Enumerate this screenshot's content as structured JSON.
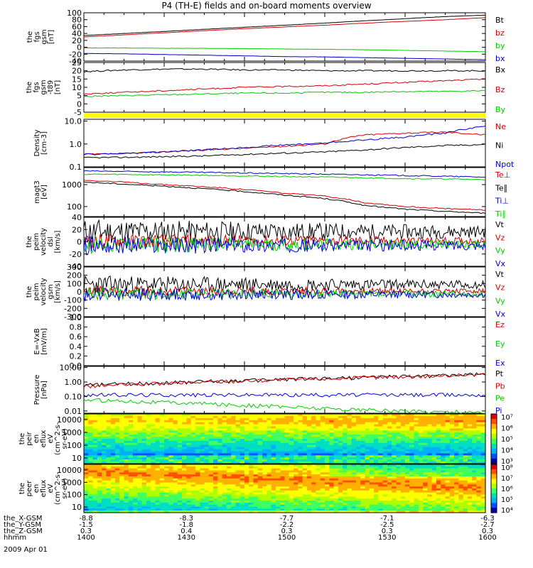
{
  "title": "P4 (TH-E) fields and on-board moments overview",
  "date": "2009 Apr 01",
  "colors": {
    "black": "#000000",
    "red": "#d40000",
    "green": "#00cc00",
    "blue": "#0000cc",
    "yellow": "#ffff00"
  },
  "chart_data": [
    {
      "id": "fgs",
      "type": "line",
      "ylabel": [
        "the",
        "fgs",
        "gsm",
        "[nT]"
      ],
      "ytick_labels": [
        "100",
        "80",
        "60",
        "40",
        "20",
        "0",
        "-20",
        "-40"
      ],
      "ylim": [
        -40,
        100
      ],
      "legend": [
        {
          "name": "Bt",
          "color": "black"
        },
        {
          "name": "bz",
          "color": "red"
        },
        {
          "name": "by",
          "color": "green"
        },
        {
          "name": "bx",
          "color": "blue"
        }
      ],
      "series": [
        {
          "name": "Bt",
          "color": "black",
          "values": [
            34,
            40,
            46,
            52,
            58,
            64,
            70,
            77,
            83,
            89,
            93
          ]
        },
        {
          "name": "bz",
          "color": "red",
          "values": [
            30,
            36,
            42,
            48,
            54,
            59,
            64,
            70,
            75,
            80,
            86
          ]
        },
        {
          "name": "by",
          "color": "green",
          "values": [
            -2,
            -2,
            -3,
            -3,
            -4,
            -5,
            -6,
            -7,
            -9,
            -11,
            -13
          ]
        },
        {
          "name": "bx",
          "color": "blue",
          "values": [
            -18,
            -19,
            -21,
            -23,
            -25,
            -27,
            -28,
            -30,
            -32,
            -34,
            -36
          ]
        }
      ]
    },
    {
      "id": "t89",
      "type": "line",
      "ylabel": [
        "the",
        "fgs",
        "gsm",
        "-t89",
        "[nT]"
      ],
      "ytick_labels": [
        "25",
        "20",
        "15",
        "10",
        "5",
        "0",
        "-5"
      ],
      "ylim": [
        -5,
        25
      ],
      "legend": [
        {
          "name": "Bx",
          "color": "black"
        },
        {
          "name": "Bz",
          "color": "red"
        },
        {
          "name": "By",
          "color": "green"
        }
      ],
      "series": [
        {
          "name": "Bx",
          "color": "black",
          "values": [
            19.5,
            20.5,
            21,
            21,
            20.5,
            20.5,
            20,
            20,
            20,
            20,
            20
          ]
        },
        {
          "name": "Bz",
          "color": "red",
          "values": [
            6,
            7,
            8,
            9,
            10,
            10.5,
            11,
            12,
            13,
            14,
            15
          ]
        },
        {
          "name": "By",
          "color": "green",
          "values": [
            4.5,
            5,
            5.5,
            6,
            6.5,
            6.5,
            7,
            7,
            7.5,
            7.5,
            8
          ]
        }
      ]
    },
    {
      "id": "density",
      "type": "line",
      "log": true,
      "ylabel": [
        "Density",
        "[cm-3]"
      ],
      "ytick_labels": [
        "10.0",
        "1.0",
        "0.1"
      ],
      "ylim": [
        0.1,
        12
      ],
      "legend": [
        {
          "name": "Ne",
          "color": "red"
        },
        {
          "name": "Ni",
          "color": "black"
        },
        {
          "name": "Npot",
          "color": "blue"
        }
      ],
      "series": [
        {
          "name": "Ne",
          "color": "red",
          "values": [
            0.35,
            0.38,
            0.45,
            0.55,
            0.65,
            0.8,
            1.0,
            2.5,
            3.0,
            3.3,
            2.5
          ]
        },
        {
          "name": "Ni",
          "color": "black",
          "values": [
            0.25,
            0.26,
            0.28,
            0.3,
            0.35,
            0.4,
            0.45,
            0.55,
            0.7,
            0.85,
            0.95
          ]
        },
        {
          "name": "Npot",
          "color": "blue",
          "values": [
            0.35,
            0.38,
            0.45,
            0.55,
            0.7,
            0.9,
            1.1,
            1.5,
            2.0,
            3.0,
            6.0
          ]
        }
      ]
    },
    {
      "id": "temp",
      "type": "line",
      "log": true,
      "ylabel": [
        "magt3",
        "[eV]"
      ],
      "ytick_labels": [
        "1000",
        "100"
      ],
      "ylim": [
        35,
        6000
      ],
      "legend": [
        {
          "name": "Te⊥",
          "color": "red"
        },
        {
          "name": "Te∥",
          "color": "black"
        },
        {
          "name": "Ti⊥",
          "color": "blue"
        },
        {
          "name": "Ti∥",
          "color": "green"
        }
      ],
      "series": [
        {
          "name": "Ti⊥",
          "color": "blue",
          "values": [
            4200,
            4000,
            3800,
            3600,
            3400,
            3200,
            3000,
            2800,
            2600,
            2400,
            2200
          ]
        },
        {
          "name": "Ti∥",
          "color": "green",
          "values": [
            3000,
            2900,
            2800,
            2650,
            2500,
            2350,
            2200,
            2050,
            1900,
            1800,
            1700
          ]
        },
        {
          "name": "Te⊥",
          "color": "red",
          "values": [
            1600,
            1300,
            1000,
            800,
            600,
            400,
            300,
            150,
            100,
            80,
            70
          ]
        },
        {
          "name": "Te∥",
          "color": "black",
          "values": [
            1300,
            1050,
            850,
            650,
            480,
            330,
            230,
            110,
            75,
            60,
            50
          ]
        }
      ]
    },
    {
      "id": "vdsl",
      "type": "line",
      "ylabel": [
        "the",
        "peim",
        "velocity",
        "dsl",
        "[km/s]"
      ],
      "ytick_labels": [
        "40",
        "20",
        "0",
        "-20",
        "-40"
      ],
      "ylim": [
        -40,
        40
      ],
      "legend": [
        {
          "name": "Vt",
          "color": "black"
        },
        {
          "name": "Vz",
          "color": "red"
        },
        {
          "name": "Vy",
          "color": "green"
        },
        {
          "name": "Vx",
          "color": "blue"
        }
      ]
    },
    {
      "id": "vgsm",
      "type": "line",
      "ylabel": [
        "the",
        "peim",
        "velocity",
        "gsm",
        "[km/s]"
      ],
      "ytick_labels": [
        "300",
        "200",
        "100",
        "0",
        "-100",
        "-200",
        "-300"
      ],
      "ylim": [
        -300,
        300
      ],
      "legend": [
        {
          "name": "Vt",
          "color": "black"
        },
        {
          "name": "Vz",
          "color": "red"
        },
        {
          "name": "Vy",
          "color": "green"
        },
        {
          "name": "Vx",
          "color": "blue"
        }
      ]
    },
    {
      "id": "efield",
      "type": "line",
      "ylabel": [
        "E=-VxB",
        "[mV/m]"
      ],
      "ytick_labels": [
        "1.0",
        "0.8",
        "0.6",
        "0.4",
        "0.2",
        "0.0"
      ],
      "ylim": [
        0,
        1
      ],
      "legend": [
        {
          "name": "Ez",
          "color": "red"
        },
        {
          "name": "Ey",
          "color": "green"
        },
        {
          "name": "Ex",
          "color": "blue"
        }
      ]
    },
    {
      "id": "pressure",
      "type": "line",
      "log": true,
      "ylabel": [
        "Pressure",
        "[nPa]"
      ],
      "ytick_labels": [
        "10.00",
        "1.00",
        "0.10",
        "0.01"
      ],
      "ylim": [
        0.007,
        12
      ],
      "legend": [
        {
          "name": "Pt",
          "color": "black"
        },
        {
          "name": "Pb",
          "color": "red"
        },
        {
          "name": "Pe",
          "color": "green"
        },
        {
          "name": "Pi",
          "color": "blue"
        }
      ],
      "series": [
        {
          "name": "Pt",
          "color": "black",
          "values": [
            0.6,
            0.75,
            0.9,
            1.1,
            1.3,
            1.55,
            1.8,
            2.1,
            2.5,
            2.9,
            3.4
          ]
        },
        {
          "name": "Pb",
          "color": "red",
          "values": [
            0.5,
            0.65,
            0.8,
            1.0,
            1.2,
            1.45,
            1.7,
            2.0,
            2.35,
            2.8,
            3.3
          ]
        },
        {
          "name": "Pi",
          "color": "blue",
          "values": [
            0.13,
            0.13,
            0.13,
            0.13,
            0.13,
            0.13,
            0.13,
            0.13,
            0.13,
            0.13,
            0.13
          ]
        },
        {
          "name": "Pe",
          "color": "green",
          "values": [
            0.06,
            0.05,
            0.04,
            0.032,
            0.025,
            0.02,
            0.015,
            0.012,
            0.01,
            0.009,
            0.008
          ]
        }
      ]
    },
    {
      "id": "ion_spec",
      "type": "heatmap",
      "ylabel": [
        "the",
        "peir",
        "en",
        "eflux",
        "eV",
        "(cm^2-s-",
        "sr-eV)"
      ],
      "ytick_labels": [
        "10000",
        "1000",
        "100",
        "10"
      ],
      "colorbar_labels": [
        "10⁷",
        "10⁶",
        "10⁵",
        "10⁴",
        "10³"
      ]
    },
    {
      "id": "ele_spec",
      "type": "heatmap",
      "ylabel": [
        "the",
        "peer",
        "en",
        "eflux",
        "eV",
        "(cm^2-s-",
        "sr-eV)"
      ],
      "ytick_labels": [
        "10000",
        "1000",
        "100",
        "10"
      ],
      "colorbar_labels": [
        "10⁸",
        "10⁷",
        "10⁶",
        "10⁵",
        "10⁴"
      ]
    }
  ],
  "ephemeris": {
    "rows": [
      {
        "label": "the_X-GSM",
        "values": [
          "-8.8",
          "-8.3",
          "-7.7",
          "-7.1",
          "-6.3"
        ]
      },
      {
        "label": "the_Y-GSM",
        "values": [
          "-1.5",
          "-1.8",
          "-2.2",
          "-2.5",
          "-2.7"
        ]
      },
      {
        "label": "the_Z-GSM",
        "values": [
          "0.3",
          "0.4",
          "0.3",
          "0.3",
          "0.3"
        ]
      },
      {
        "label": "hhmm",
        "values": [
          "1400",
          "1430",
          "1500",
          "1530",
          "1600"
        ]
      }
    ]
  }
}
